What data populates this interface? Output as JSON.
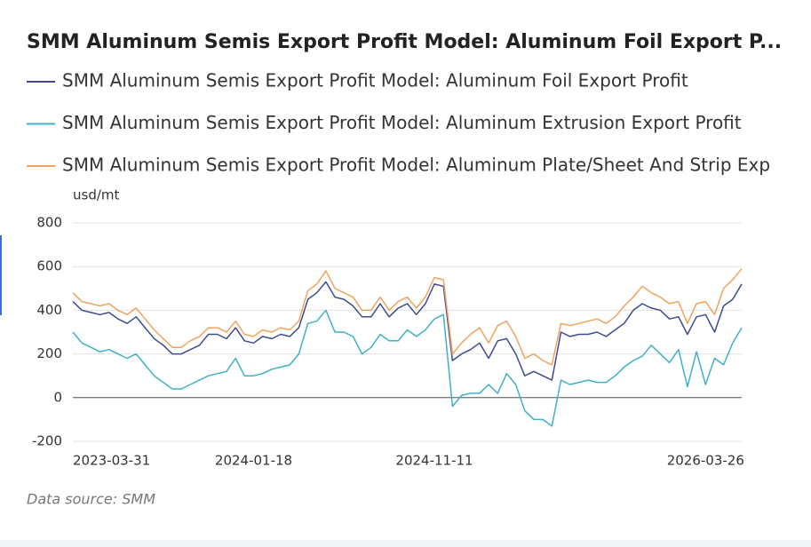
{
  "chart_data": {
    "type": "line",
    "title": "SMM Aluminum Semis Export Profit Model: Aluminum Foil Export P...",
    "y_label": "usd/mt",
    "source": "Data source:  SMM",
    "categories": [
      "2023-03-31",
      null,
      null,
      null,
      null,
      null,
      null,
      null,
      null,
      null,
      null,
      null,
      null,
      null,
      null,
      null,
      null,
      null,
      null,
      null,
      "2024-01-18",
      null,
      null,
      null,
      null,
      null,
      null,
      null,
      null,
      null,
      null,
      null,
      null,
      null,
      null,
      null,
      null,
      null,
      null,
      null,
      "2024-11-11",
      null,
      null,
      null,
      null,
      null,
      null,
      null,
      null,
      null,
      null,
      null,
      null,
      null,
      null,
      null,
      null,
      null,
      null,
      null,
      null,
      null,
      null,
      null,
      null,
      null,
      null,
      null,
      null,
      null,
      "2026-03-26",
      null,
      null,
      null,
      null
    ],
    "ylim": [
      -200,
      800
    ],
    "yticks": [
      -200,
      0,
      200,
      400,
      600,
      800
    ],
    "grid": true,
    "series": [
      {
        "name": "SMM Aluminum Semis Export Profit Model: Aluminum Foil Export Profit",
        "color": "#3f4b8f",
        "values": [
          440,
          400,
          390,
          380,
          390,
          360,
          340,
          370,
          320,
          270,
          240,
          200,
          200,
          220,
          240,
          290,
          290,
          270,
          320,
          260,
          250,
          280,
          270,
          290,
          280,
          320,
          450,
          480,
          530,
          460,
          450,
          420,
          370,
          370,
          430,
          370,
          410,
          430,
          380,
          430,
          520,
          510,
          170,
          200,
          220,
          250,
          180,
          260,
          270,
          200,
          100,
          120,
          100,
          80,
          300,
          280,
          290,
          290,
          300,
          280,
          310,
          340,
          400,
          430,
          410,
          400,
          360,
          370,
          290,
          370,
          380,
          300,
          420,
          450,
          520
        ]
      },
      {
        "name": "SMM Aluminum Semis Export Profit Model: Aluminum Extrusion Export Profit",
        "color": "#3fb1c7",
        "values": [
          300,
          250,
          230,
          210,
          220,
          200,
          180,
          200,
          150,
          100,
          70,
          40,
          40,
          60,
          80,
          100,
          110,
          120,
          180,
          100,
          100,
          110,
          130,
          140,
          150,
          200,
          340,
          350,
          400,
          300,
          300,
          280,
          200,
          230,
          290,
          260,
          260,
          310,
          280,
          310,
          360,
          380,
          -40,
          10,
          20,
          20,
          60,
          20,
          110,
          60,
          -60,
          -100,
          -100,
          -130,
          80,
          60,
          70,
          80,
          70,
          70,
          100,
          140,
          170,
          190,
          240,
          200,
          160,
          220,
          50,
          210,
          60,
          180,
          150,
          250,
          320
        ]
      },
      {
        "name": "SMM Aluminum Semis Export Profit Model: Aluminum Plate/Sheet And Strip Exp",
        "color": "#f0a35e",
        "values": [
          480,
          440,
          430,
          420,
          430,
          400,
          380,
          410,
          360,
          310,
          270,
          230,
          230,
          260,
          280,
          320,
          320,
          300,
          350,
          290,
          280,
          310,
          300,
          320,
          310,
          350,
          490,
          520,
          580,
          500,
          480,
          460,
          400,
          400,
          460,
          400,
          440,
          460,
          410,
          460,
          550,
          540,
          200,
          250,
          290,
          320,
          250,
          330,
          350,
          280,
          180,
          200,
          170,
          150,
          340,
          330,
          340,
          350,
          360,
          340,
          370,
          420,
          460,
          510,
          480,
          460,
          430,
          440,
          340,
          430,
          440,
          380,
          500,
          540,
          590
        ]
      }
    ]
  }
}
